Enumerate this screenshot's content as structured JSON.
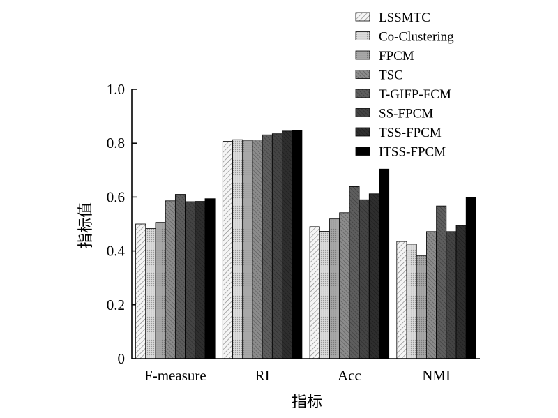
{
  "chart_data": {
    "type": "bar",
    "title": "",
    "xlabel": "指标",
    "ylabel": "指标值",
    "ylim": [
      0,
      1.0
    ],
    "yticks": [
      "0",
      "0.2",
      "0.4",
      "0.6",
      "0.8",
      "1.0"
    ],
    "categories": [
      "F-measure",
      "RI",
      "Acc",
      "NMI"
    ],
    "legend_position": "top-right",
    "series": [
      {
        "name": "LSSMTC",
        "values": [
          0.5,
          0.807,
          0.49,
          0.435
        ]
      },
      {
        "name": "Co-Clustering",
        "values": [
          0.483,
          0.813,
          0.473,
          0.425
        ]
      },
      {
        "name": "FPCM",
        "values": [
          0.506,
          0.811,
          0.519,
          0.383
        ]
      },
      {
        "name": "TSC",
        "values": [
          0.586,
          0.812,
          0.542,
          0.472
        ]
      },
      {
        "name": "T-GIFP-FCM",
        "values": [
          0.61,
          0.831,
          0.639,
          0.567
        ]
      },
      {
        "name": "SS-FPCM",
        "values": [
          0.583,
          0.835,
          0.59,
          0.472
        ]
      },
      {
        "name": "TSS-FPCM",
        "values": [
          0.584,
          0.845,
          0.612,
          0.495
        ]
      },
      {
        "name": "ITSS-FPCM",
        "values": [
          0.594,
          0.848,
          0.704,
          0.599
        ]
      }
    ]
  }
}
